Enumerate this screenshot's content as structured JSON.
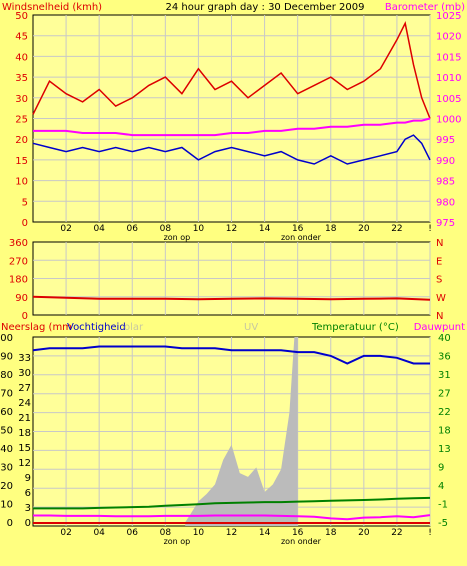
{
  "header": {
    "left_label": "Windsnelheid (kmh)",
    "title": "24 hour graph day : 30 December 2009",
    "right_label": "Barometer (mb)"
  },
  "colors": {
    "background": "#ffff80",
    "plot_bg": "#ffff99",
    "grid": "#c8c8c8",
    "wind_gust": "#dd0000",
    "wind_avg": "#0000cc",
    "barometer": "#ff00ff",
    "direction": "#dd0000",
    "humidity": "#0000cc",
    "temperature": "#008000",
    "dewpoint": "#ff00ff",
    "rain": "#bbbbbb",
    "uv": "#c8c8c8"
  },
  "x_labels": [
    "02",
    "04",
    "06",
    "08",
    "10",
    "12",
    "14",
    "16",
    "18",
    "20",
    "22",
    "!"
  ],
  "x_notes": {
    "sunrise": "zon op",
    "sunset": "zon onder"
  },
  "chart_data": [
    {
      "type": "line",
      "title": "24 hour graph day : 30 December 2009",
      "left_axis": {
        "label": "Windsnelheid (kmh)",
        "ticks": [
          "0",
          "5",
          "10",
          "15",
          "20",
          "25",
          "30",
          "35",
          "40",
          "45",
          "50"
        ],
        "range": [
          0,
          50
        ]
      },
      "right_axis": {
        "label": "Barometer (mb)",
        "ticks": [
          "975",
          "980",
          "985",
          "990",
          "995",
          "1000",
          "1005",
          "1010",
          "1015",
          "1020",
          "1025"
        ],
        "range": [
          975,
          1025
        ]
      },
      "x_hours": [
        0,
        1,
        2,
        3,
        4,
        5,
        6,
        7,
        8,
        9,
        10,
        11,
        12,
        13,
        14,
        15,
        16,
        17,
        18,
        19,
        20,
        21,
        22,
        22.5,
        23,
        23.5,
        24
      ],
      "series": [
        {
          "key": "gust",
          "axis": "left",
          "values": [
            26,
            34,
            31,
            29,
            32,
            28,
            30,
            33,
            35,
            31,
            37,
            32,
            34,
            30,
            33,
            36,
            31,
            33,
            35,
            32,
            34,
            37,
            44,
            48,
            38,
            30,
            25
          ]
        },
        {
          "key": "avg",
          "axis": "left",
          "values": [
            19,
            18,
            17,
            18,
            17,
            18,
            17,
            18,
            17,
            18,
            15,
            17,
            18,
            17,
            16,
            17,
            15,
            14,
            16,
            14,
            15,
            16,
            17,
            20,
            21,
            19,
            15
          ]
        },
        {
          "key": "baro",
          "axis": "right",
          "values": [
            997,
            997,
            997,
            996.5,
            996.5,
            996.5,
            996,
            996,
            996,
            996,
            996,
            996,
            996.5,
            996.5,
            997,
            997,
            997.5,
            997.5,
            998,
            998,
            998.5,
            998.5,
            999,
            999,
            999.5,
            999.5,
            1000
          ]
        }
      ]
    },
    {
      "type": "line",
      "left_axis": {
        "ticks": [
          "0",
          "90",
          "180",
          "270",
          "360"
        ],
        "range": [
          0,
          360
        ]
      },
      "right_axis": {
        "ticks": [
          "N",
          "W",
          "S",
          "E",
          "N"
        ]
      },
      "x_hours": [
        0,
        2,
        4,
        6,
        8,
        10,
        12,
        14,
        16,
        18,
        20,
        22,
        24
      ],
      "series": [
        {
          "key": "direction",
          "axis": "left",
          "values": [
            90,
            85,
            80,
            80,
            80,
            78,
            80,
            82,
            80,
            78,
            80,
            82,
            75
          ]
        }
      ]
    },
    {
      "type": "line",
      "top_labels": {
        "rain": "Neerslag (mm",
        "humidity": "Vochtigheid",
        "solar": "olar",
        "uv": "UV",
        "temperature": "Temperatuur (°C)",
        "dewpoint": "Dauwpunt"
      },
      "left_axis": {
        "ticks": [
          "0",
          "10",
          "20",
          "30",
          "40",
          "50",
          "60",
          "70",
          "80",
          "90",
          "100"
        ],
        "range": [
          0,
          100
        ]
      },
      "mid_axis": {
        "ticks": [
          "0",
          "3",
          "6",
          "9",
          "12",
          "15",
          "18",
          "21",
          "24",
          "27",
          "30",
          "33"
        ]
      },
      "right_axis": {
        "ticks": [
          "-5",
          "-1",
          "4",
          "9",
          "13",
          "18",
          "22",
          "27",
          "31",
          "36",
          "40"
        ],
        "range": [
          -5,
          40
        ]
      },
      "x_hours": [
        0,
        1,
        2,
        3,
        4,
        5,
        6,
        7,
        8,
        9,
        10,
        11,
        12,
        13,
        14,
        15,
        16,
        17,
        18,
        19,
        20,
        21,
        22,
        23,
        24
      ],
      "series": [
        {
          "key": "humidity",
          "axis": "left",
          "values": [
            93,
            94,
            94,
            94,
            95,
            95,
            95,
            95,
            95,
            94,
            94,
            94,
            93,
            93,
            93,
            93,
            92,
            92,
            90,
            86,
            90,
            90,
            89,
            86,
            86
          ]
        },
        {
          "key": "temperature",
          "axis": "right",
          "values": [
            -0.8,
            -0.8,
            -0.8,
            -0.8,
            -0.7,
            -0.6,
            -0.5,
            -0.4,
            -0.2,
            0,
            0.2,
            0.4,
            0.5,
            0.6,
            0.7,
            0.7,
            0.8,
            0.9,
            1.0,
            1.1,
            1.2,
            1.3,
            1.5,
            1.6,
            1.7
          ]
        },
        {
          "key": "dewpoint",
          "axis": "right",
          "values": [
            -2.5,
            -2.5,
            -2.6,
            -2.6,
            -2.6,
            -2.7,
            -2.7,
            -2.7,
            -2.6,
            -2.6,
            -2.6,
            -2.5,
            -2.5,
            -2.5,
            -2.5,
            -2.6,
            -2.7,
            -2.8,
            -3.2,
            -3.4,
            -3.0,
            -2.9,
            -2.7,
            -2.9,
            -2.4
          ]
        }
      ],
      "rain_area": {
        "axis": "left",
        "x_hours": [
          9.2,
          9.5,
          10,
          10.5,
          11,
          11.5,
          12,
          12.5,
          13,
          13.5,
          14,
          14.5,
          15,
          15.5,
          15.8,
          16
        ],
        "values": [
          2,
          6,
          13,
          17,
          22,
          35,
          43,
          28,
          26,
          31,
          18,
          22,
          30,
          60,
          100,
          100
        ]
      }
    }
  ]
}
